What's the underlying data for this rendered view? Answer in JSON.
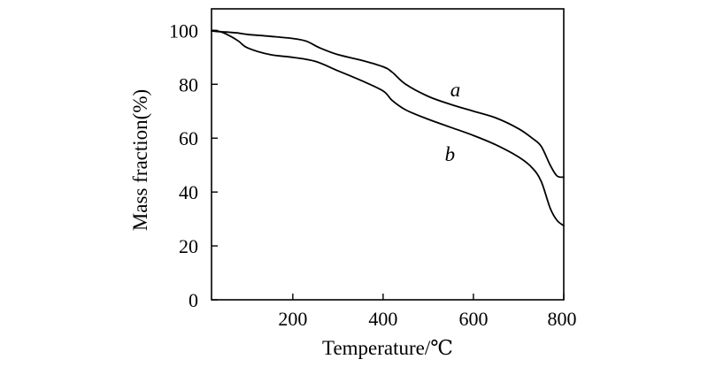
{
  "chart_data": {
    "type": "line",
    "title": "",
    "xlabel": "Temperature/℃",
    "ylabel": "Mass fraction(%)",
    "xlim": [
      20,
      800
    ],
    "ylim": [
      0,
      108
    ],
    "xticks": [
      200,
      400,
      600,
      800
    ],
    "yticks": [
      0,
      20,
      40,
      60,
      80,
      100
    ],
    "xtick_labels": [
      "200",
      "400",
      "600",
      "800"
    ],
    "ytick_labels": [
      "0",
      "20",
      "40",
      "60",
      "80",
      "100"
    ],
    "grid": false,
    "legend": "none",
    "line_color": "#000000",
    "series": [
      {
        "name": "a",
        "x": [
          20,
          40,
          60,
          80,
          100,
          150,
          200,
          230,
          260,
          300,
          350,
          400,
          420,
          450,
          500,
          550,
          600,
          650,
          700,
          730,
          750,
          770,
          785,
          800
        ],
        "y": [
          99.8,
          99.5,
          99.3,
          99.0,
          98.5,
          97.8,
          97.0,
          96.0,
          93.5,
          91.0,
          89.0,
          86.5,
          84.5,
          80.0,
          75.5,
          72.5,
          70.0,
          67.5,
          63.5,
          60.0,
          57.0,
          50.0,
          46.0,
          45.5
        ]
      },
      {
        "name": "b",
        "x": [
          20,
          40,
          60,
          80,
          100,
          150,
          200,
          250,
          300,
          350,
          400,
          420,
          450,
          500,
          550,
          600,
          650,
          700,
          730,
          750,
          770,
          785,
          800
        ],
        "y": [
          100.0,
          99.5,
          98.0,
          96.0,
          93.5,
          91.0,
          90.0,
          88.5,
          85.0,
          81.5,
          77.5,
          74.0,
          70.5,
          67.0,
          64.0,
          61.0,
          57.5,
          53.0,
          49.0,
          44.0,
          34.0,
          29.5,
          27.5
        ]
      }
    ]
  }
}
